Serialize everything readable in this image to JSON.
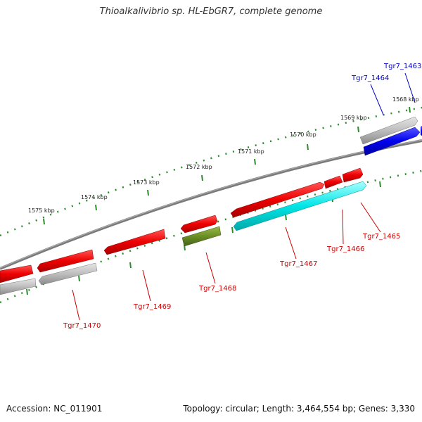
{
  "title": "Thioalkalivibrio sp. HL-EbGR7, complete genome",
  "footer": {
    "accession": "Accession: NC_011901",
    "summary": "Topology: circular; Length: 3,464,554 bp; Genes: 3,330"
  },
  "colors": {
    "backbone": "#808080",
    "ruler": "#2e8b2e",
    "label_red": "#cc0000",
    "label_blue": "#0000cc"
  },
  "ticks": [
    "1568 kbp",
    "1569 kbp",
    "1570 kbp",
    "1571 kbp",
    "1572 kbp",
    "1573 kbp",
    "1574 kbp",
    "1575 kbp"
  ],
  "genes": [
    {
      "id": "Tgr7_1463",
      "color": "blue",
      "label_color": "blue"
    },
    {
      "id": "Tgr7_1464",
      "color": "gray",
      "label_color": "blue"
    },
    {
      "id": "Tgr7_1465",
      "color": "red",
      "label_color": "red"
    },
    {
      "id": "Tgr7_1466",
      "color": "red",
      "label_color": "red"
    },
    {
      "id": "Tgr7_1467",
      "color": "red",
      "label_color": "red"
    },
    {
      "id": "Tgr7_1467 (cyan)",
      "color": "cyan",
      "label_color": "none"
    },
    {
      "id": "Tgr7_1468",
      "color": "olive",
      "label_color": "red"
    },
    {
      "id": "Tgr7_1469",
      "color": "red",
      "label_color": "red"
    },
    {
      "id": "Tgr7_1470",
      "color": "red",
      "label_color": "red"
    }
  ],
  "gene_labels": [
    "Tgr7_1463",
    "Tgr7_1464",
    "Tgr7_1465",
    "Tgr7_1466",
    "Tgr7_1467",
    "Tgr7_1468",
    "Tgr7_1469",
    "Tgr7_1470"
  ]
}
